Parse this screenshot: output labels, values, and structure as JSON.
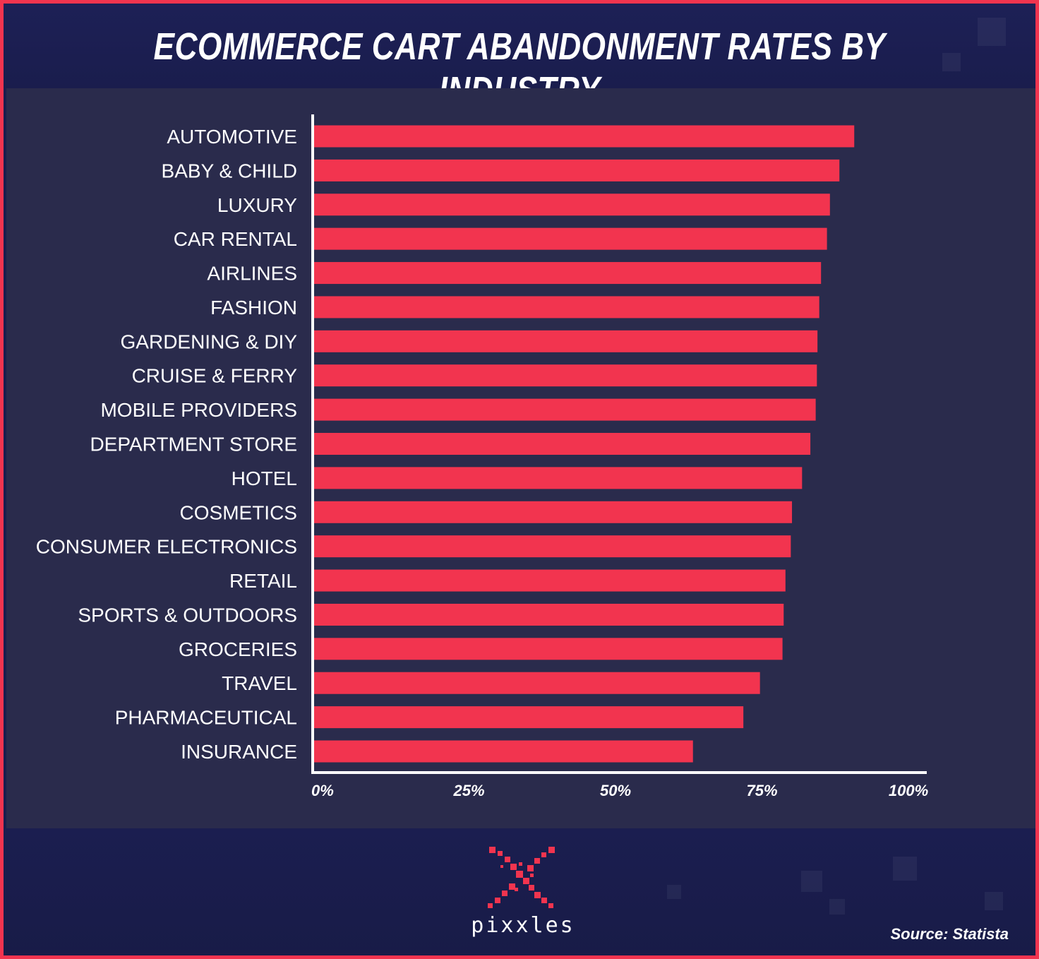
{
  "title": "ECOMMERCE CART ABANDONMENT RATES BY INDUSTRY",
  "brand": {
    "name": "pixxles",
    "logo_icon": "pixel-x-logo-icon"
  },
  "source": "Source: Statista",
  "colors": {
    "bar": "#f2344f",
    "frame": "#f2344f",
    "background": "#1b1e4e",
    "panel": "#2a2b4c",
    "text": "#ffffff"
  },
  "chart_data": {
    "type": "bar",
    "orientation": "horizontal",
    "title": "ECOMMERCE CART ABANDONMENT RATES BY INDUSTRY",
    "xlabel": "",
    "ylabel": "",
    "xlim": [
      0,
      100
    ],
    "x_ticks": [
      "0%",
      "25%",
      "50%",
      "75%",
      "100%"
    ],
    "grid": false,
    "categories": [
      "AUTOMOTIVE",
      "BABY & CHILD",
      "LUXURY",
      "CAR RENTAL",
      "AIRLINES",
      "FASHION",
      "GARDENING & DIY",
      "CRUISE & FERRY",
      "MOBILE PROVIDERS",
      "DEPARTMENT STORE",
      "HOTEL",
      "COSMETICS",
      "CONSUMER ELECTRONICS",
      "RETAIL",
      "SPORTS & OUTDOORS",
      "GROCERIES",
      "TRAVEL",
      "PHARMACEUTICAL",
      "INSURANCE"
    ],
    "values": [
      91.1,
      88.6,
      87.0,
      86.5,
      85.5,
      85.2,
      84.9,
      84.8,
      84.6,
      83.7,
      82.3,
      80.6,
      80.4,
      79.5,
      79.2,
      79.0,
      75.2,
      72.4,
      63.9
    ]
  }
}
